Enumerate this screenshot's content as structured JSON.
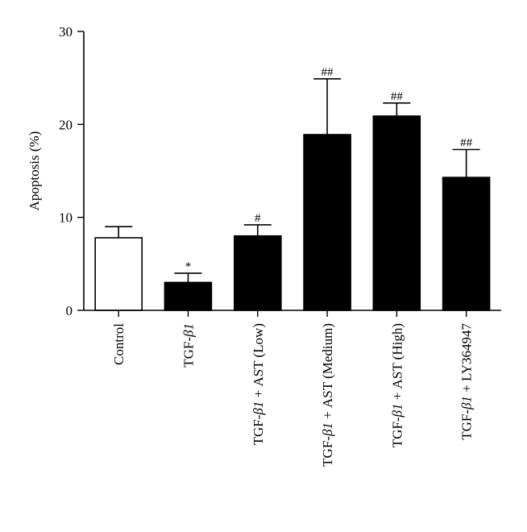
{
  "chart_data": {
    "type": "bar",
    "title": "",
    "ylabel": "Apoptosis (%)",
    "ylim": [
      0,
      30
    ],
    "yticks": [
      0,
      10,
      20,
      30
    ],
    "categories": [
      {
        "parts": [
          {
            "text": "Control",
            "italic": false
          }
        ]
      },
      {
        "parts": [
          {
            "text": "TGF-",
            "italic": false
          },
          {
            "text": "β1",
            "italic": true
          }
        ]
      },
      {
        "parts": [
          {
            "text": "TGF-",
            "italic": false
          },
          {
            "text": "β1",
            "italic": true
          },
          {
            "text": " + AST (Low)",
            "italic": false
          }
        ]
      },
      {
        "parts": [
          {
            "text": "TGF-",
            "italic": false
          },
          {
            "text": "β1",
            "italic": true
          },
          {
            "text": " + AST (Medium)",
            "italic": false
          }
        ]
      },
      {
        "parts": [
          {
            "text": "TGF-",
            "italic": false
          },
          {
            "text": "β1",
            "italic": true
          },
          {
            "text": " + AST (High)",
            "italic": false
          }
        ]
      },
      {
        "parts": [
          {
            "text": "TGF-",
            "italic": false
          },
          {
            "text": "β1",
            "italic": true
          },
          {
            "text": " + LY364947",
            "italic": false
          }
        ]
      }
    ],
    "values": [
      7.8,
      3.0,
      8.0,
      18.9,
      20.9,
      14.3
    ],
    "errors": [
      1.2,
      1.0,
      1.2,
      6.0,
      1.4,
      3.0
    ],
    "significance": [
      "",
      "*",
      "#",
      "##",
      "##",
      "##"
    ],
    "bar_fills": [
      "#ffffff",
      "#000000",
      "#000000",
      "#000000",
      "#000000",
      "#000000"
    ],
    "legend": "none",
    "grid": false
  }
}
